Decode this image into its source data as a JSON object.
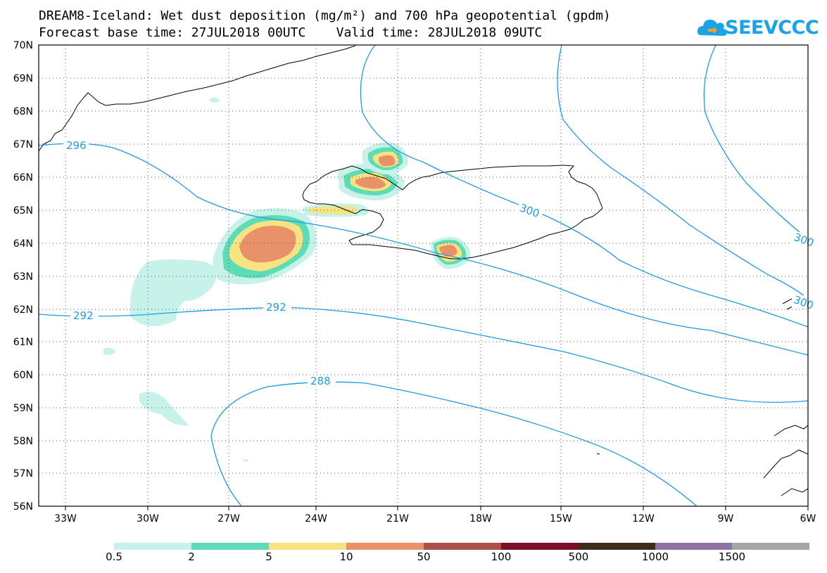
{
  "title": {
    "line1": "DREAM8-Iceland: Wet dust deposition (mg/m²) and 700 hPa geopotential (gpdm)",
    "line2": "Forecast base time: 27JUL2018 00UTC    Valid time: 28JUL2018 09UTC"
  },
  "logo": {
    "text": "SEEVCCC",
    "icon": "cloud-arrow-icon"
  },
  "map": {
    "lon_range": [
      -34.5,
      -6
    ],
    "lat_range": [
      56,
      70
    ],
    "lon_ticks": [
      "33W",
      "30W",
      "27W",
      "24W",
      "21W",
      "18W",
      "15W",
      "12W",
      "9W",
      "6W"
    ],
    "lat_ticks": [
      "56N",
      "57N",
      "58N",
      "59N",
      "60N",
      "61N",
      "62N",
      "63N",
      "64N",
      "65N",
      "66N",
      "67N",
      "68N",
      "69N",
      "70N"
    ],
    "grid": true,
    "contour_color": "#1e9be4",
    "contour_labels": [
      "296",
      "300",
      "300",
      "300",
      "292",
      "292",
      "288"
    ]
  },
  "legend": {
    "labels": [
      "0.5",
      "2",
      "5",
      "10",
      "50",
      "100",
      "500",
      "1000",
      "1500"
    ],
    "colors": [
      "#c6f2ea",
      "#5ddcb6",
      "#f7e382",
      "#e99168",
      "#ab4f4a",
      "#7c0e27",
      "#3f2a1d",
      "#8d72a2",
      "#a6a6a6"
    ]
  }
}
